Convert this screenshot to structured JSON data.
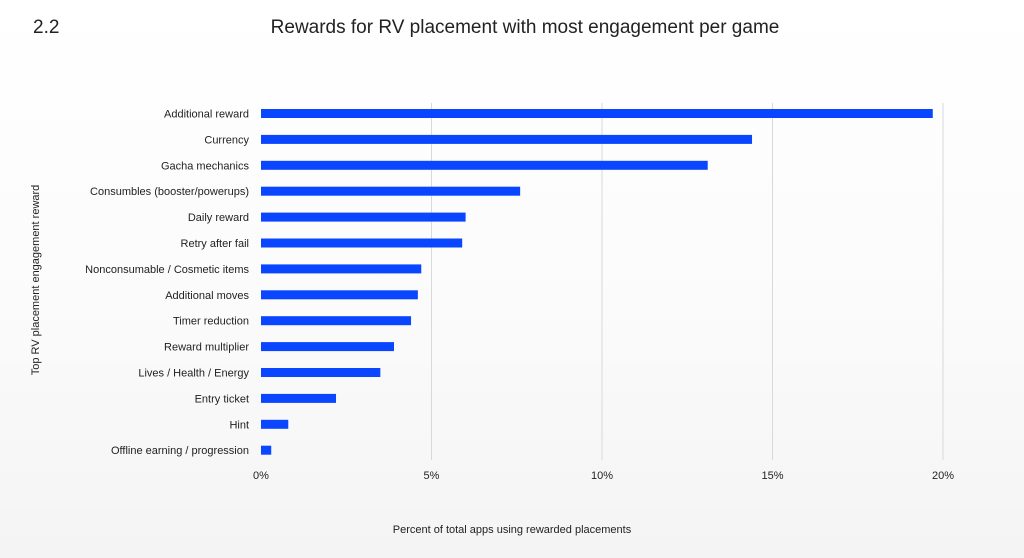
{
  "figure_number": "2.2",
  "chart_data": {
    "type": "bar",
    "orientation": "horizontal",
    "title": "Rewards for RV placement with most engagement per game",
    "xlabel": "Percent of total apps using rewarded placements",
    "ylabel": "Top RV placement engagement reward",
    "xlim": [
      0,
      20
    ],
    "x_ticks": [
      0,
      5,
      10,
      15,
      20
    ],
    "x_tick_labels": [
      "0%",
      "5%",
      "10%",
      "15%",
      "20%"
    ],
    "grid": true,
    "bar_color": "#0a46ff",
    "categories": [
      "Additional reward",
      "Currency",
      "Gacha mechanics",
      "Consumbles (booster/powerups)",
      "Daily reward",
      "Retry after fail",
      "Nonconsumable / Cosmetic items",
      "Additional moves",
      "Timer reduction",
      "Reward multiplier",
      "Lives / Health / Energy",
      "Entry ticket",
      "Hint",
      "Offline earning / progression"
    ],
    "values": [
      19.7,
      14.4,
      13.1,
      7.6,
      6.0,
      5.9,
      4.7,
      4.6,
      4.4,
      3.9,
      3.5,
      2.2,
      0.8,
      0.3
    ]
  }
}
